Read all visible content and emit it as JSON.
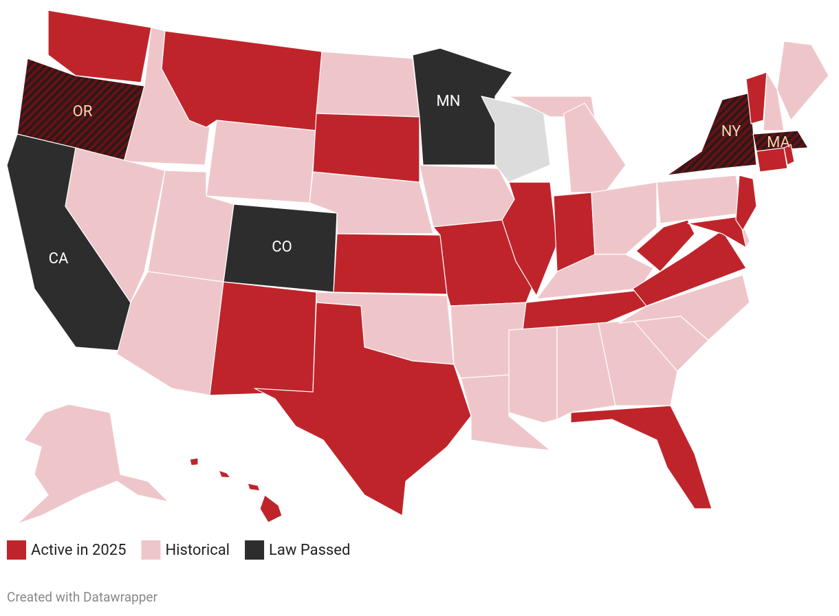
{
  "legend": [
    {
      "label": "Active in 2025",
      "color": "#c0242b"
    },
    {
      "label": "Historical",
      "color": "#eec6ca"
    },
    {
      "label": "Law Passed",
      "color": "#2d2d2d"
    }
  ],
  "state_labels": [
    "OR",
    "CA",
    "CO",
    "MN",
    "NY",
    "MA"
  ],
  "footer": "Created with Datawrapper"
}
